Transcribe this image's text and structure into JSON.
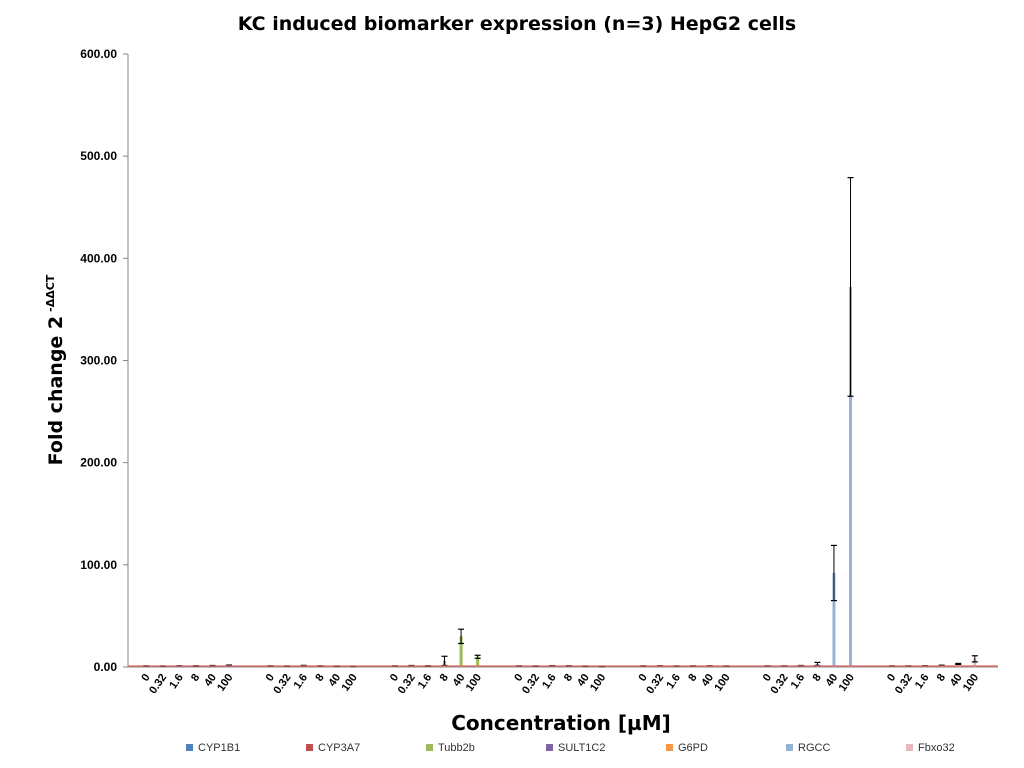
{
  "chart_data": {
    "type": "bar",
    "title": "KC induced biomarker expression (n=3) HepG2 cells",
    "ylabel": "Fold change 2",
    "ylabel_sup": "-ΔΔCT",
    "xlabel": "Concentration [µM]",
    "ylim": [
      0,
      600
    ],
    "yticks": [
      "0.00",
      "100.00",
      "200.00",
      "300.00",
      "400.00",
      "500.00",
      "600.00"
    ],
    "reference_line": 1,
    "reference_color": "#e06666",
    "legend_position": "bottom",
    "groups": [
      {
        "series": "CYP1B1",
        "color": "#4f81bd",
        "categories": [
          "0",
          "0.32",
          "1.6",
          "8",
          "40",
          "100"
        ],
        "values": [
          1.0,
          0.9,
          1.1,
          1.0,
          1.2,
          1.5
        ],
        "errors": [
          0.2,
          0.2,
          0.2,
          0.3,
          0.3,
          0.4
        ]
      },
      {
        "series": "CYP3A7",
        "color": "#c0504d",
        "categories": [
          "0",
          "0.32",
          "1.6",
          "8",
          "40",
          "100"
        ],
        "values": [
          1.0,
          0.9,
          1.3,
          1.0,
          0.8,
          0.7
        ],
        "errors": [
          0.2,
          0.2,
          0.3,
          0.2,
          0.2,
          0.2
        ]
      },
      {
        "series": "Tubb2b",
        "color": "#9bbb59",
        "categories": [
          "0",
          "0.32",
          "1.6",
          "8",
          "40",
          "100"
        ],
        "values": [
          1.0,
          1.2,
          1.0,
          6.0,
          30.0,
          10.0
        ],
        "errors": [
          0.2,
          0.3,
          0.3,
          4.5,
          7.0,
          1.5
        ]
      },
      {
        "series": "SULT1C2",
        "color": "#8064a2",
        "categories": [
          "0",
          "0.32",
          "1.6",
          "8",
          "40",
          "100"
        ],
        "values": [
          1.0,
          0.9,
          1.2,
          1.1,
          0.8,
          0.6
        ],
        "errors": [
          0.2,
          0.2,
          0.2,
          0.2,
          0.2,
          0.2
        ]
      },
      {
        "series": "G6PD",
        "color": "#f79646",
        "categories": [
          "0",
          "0.32",
          "1.6",
          "8",
          "40",
          "100"
        ],
        "values": [
          1.0,
          1.1,
          0.9,
          1.0,
          1.1,
          0.9
        ],
        "errors": [
          0.2,
          0.2,
          0.2,
          0.2,
          0.2,
          0.2
        ]
      },
      {
        "series": "RGCC",
        "color": "#95b3d7",
        "categories": [
          "0",
          "0.32",
          "1.6",
          "8",
          "40",
          "100"
        ],
        "values": [
          1.0,
          1.0,
          1.2,
          3.0,
          92.0,
          372.0
        ],
        "errors": [
          0.2,
          0.2,
          0.3,
          1.5,
          27.0,
          107.0
        ]
      },
      {
        "series": "Fbxo32",
        "color": "#e6b9b8",
        "categories": [
          "0",
          "0.32",
          "1.6",
          "8",
          "40",
          "100"
        ],
        "values": [
          1.0,
          1.0,
          1.1,
          1.5,
          3.0,
          8.0
        ],
        "errors": [
          0.2,
          0.2,
          0.2,
          0.3,
          0.5,
          3.0
        ]
      }
    ]
  }
}
